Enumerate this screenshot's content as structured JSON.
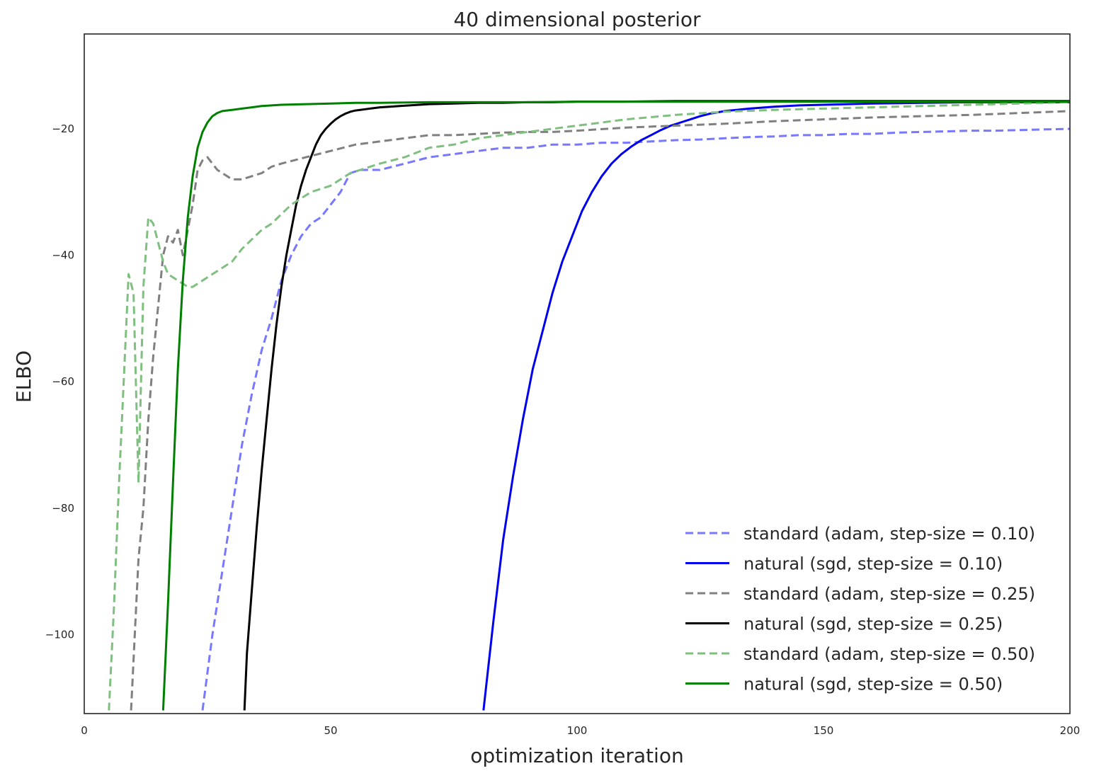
{
  "chart_data": {
    "type": "line",
    "title": "40 dimensional posterior",
    "xlabel": "optimization iteration",
    "ylabel": "ELBO",
    "xlim": [
      0,
      200
    ],
    "ylim": [
      -112.5,
      -5
    ],
    "xticks": [
      0,
      50,
      100,
      150,
      200
    ],
    "yticks": [
      -100,
      -80,
      -60,
      -40,
      -20
    ],
    "grid": false,
    "legend_position": "lower right",
    "series": [
      {
        "name": "standard (adam, step-size = 0.10)",
        "color": "#7777ff",
        "style": "dashed",
        "x": [
          24,
          26,
          28,
          30,
          32,
          34,
          36,
          38,
          40,
          42,
          44,
          46,
          48,
          50,
          52,
          54,
          56,
          58,
          60,
          65,
          70,
          75,
          80,
          85,
          90,
          95,
          100,
          105,
          110,
          115,
          120,
          125,
          130,
          135,
          140,
          145,
          150,
          155,
          160,
          165,
          170,
          175,
          180,
          185,
          190,
          195,
          200
        ],
        "y": [
          -112,
          -100,
          -90,
          -80,
          -70,
          -62,
          -55,
          -50,
          -44,
          -40,
          -37,
          -35,
          -34,
          -32,
          -30,
          -27,
          -26.5,
          -26.5,
          -26.5,
          -25.5,
          -24.5,
          -24,
          -23.5,
          -23,
          -23,
          -22.5,
          -22.5,
          -22.2,
          -22.2,
          -22,
          -21.8,
          -21.7,
          -21.5,
          -21.3,
          -21.2,
          -21,
          -21,
          -20.8,
          -20.8,
          -20.6,
          -20.5,
          -20.4,
          -20.3,
          -20.3,
          -20.2,
          -20.1,
          -20
        ]
      },
      {
        "name": "natural (sgd, step-size = 0.10)",
        "color": "#0000ee",
        "style": "solid",
        "x": [
          81,
          83,
          85,
          87,
          89,
          91,
          93,
          95,
          97,
          99,
          101,
          103,
          105,
          107,
          109,
          111,
          113,
          115,
          117,
          119,
          121,
          123,
          125,
          127,
          130,
          135,
          140,
          145,
          150,
          155,
          160,
          170,
          180,
          190,
          200
        ],
        "y": [
          -112,
          -98,
          -85,
          -75,
          -66,
          -58,
          -52,
          -46,
          -41,
          -37,
          -33,
          -30,
          -27.5,
          -25.5,
          -24,
          -22.8,
          -21.8,
          -21,
          -20.2,
          -19.5,
          -19,
          -18.5,
          -18,
          -17.6,
          -17.2,
          -16.8,
          -16.5,
          -16.3,
          -16.2,
          -16.1,
          -16,
          -15.9,
          -15.8,
          -15.8,
          -15.8
        ]
      },
      {
        "name": "standard (adam, step-size = 0.25)",
        "color": "#808080",
        "style": "dashed",
        "x": [
          9.5,
          10,
          11,
          12,
          13,
          14,
          15,
          16,
          17,
          18,
          19,
          20,
          21,
          22,
          23,
          24,
          25,
          26,
          27,
          28,
          29,
          30,
          32,
          34,
          36,
          38,
          40,
          45,
          50,
          55,
          60,
          65,
          70,
          75,
          80,
          85,
          90,
          95,
          100,
          110,
          120,
          130,
          140,
          150,
          160,
          170,
          180,
          190,
          200
        ],
        "y": [
          -112,
          -104,
          -88,
          -80,
          -66,
          -56,
          -48,
          -40,
          -37,
          -38,
          -36,
          -40,
          -36,
          -32,
          -26.5,
          -25,
          -24.5,
          -25.5,
          -26.5,
          -27,
          -27.5,
          -28,
          -28,
          -27.5,
          -27,
          -26,
          -25.5,
          -24.5,
          -23.5,
          -22.5,
          -22,
          -21.5,
          -21,
          -21,
          -20.8,
          -20.6,
          -20.5,
          -20.5,
          -20.3,
          -19.8,
          -19.5,
          -19.2,
          -18.8,
          -18.5,
          -18.2,
          -18,
          -17.8,
          -17.5,
          -17.2
        ]
      },
      {
        "name": "natural (sgd, step-size = 0.25)",
        "color": "#000000",
        "style": "solid",
        "x": [
          32.5,
          33,
          34,
          35,
          36,
          37,
          38,
          39,
          40,
          41,
          42,
          43,
          44,
          45,
          46,
          47,
          48,
          49,
          50,
          51,
          52,
          53,
          54,
          55,
          56,
          57,
          58,
          59,
          60,
          62,
          64,
          66,
          68,
          70,
          75,
          80,
          85,
          90,
          95,
          100,
          110,
          120,
          130,
          140,
          150,
          160,
          170,
          180,
          190,
          200
        ],
        "y": [
          -112,
          -103,
          -93,
          -83,
          -74,
          -66,
          -58,
          -51,
          -45,
          -40,
          -36,
          -32,
          -29,
          -26.5,
          -24.5,
          -22.5,
          -21,
          -20,
          -19.2,
          -18.5,
          -18,
          -17.6,
          -17.3,
          -17.1,
          -17,
          -16.9,
          -16.8,
          -16.7,
          -16.6,
          -16.5,
          -16.4,
          -16.3,
          -16.2,
          -16.1,
          -16,
          -15.9,
          -15.9,
          -15.8,
          -15.8,
          -15.7,
          -15.7,
          -15.6,
          -15.6,
          -15.6,
          -15.6,
          -15.6,
          -15.6,
          -15.6,
          -15.6,
          -15.6
        ]
      },
      {
        "name": "standard (adam, step-size = 0.50)",
        "color": "#7fbf7f",
        "style": "dashed",
        "x": [
          5,
          6,
          7,
          8,
          9,
          10,
          11,
          12,
          13,
          14,
          15,
          16,
          17,
          18,
          19,
          20,
          21,
          22,
          23,
          24,
          26,
          28,
          30,
          32,
          34,
          36,
          38,
          40,
          42,
          44,
          46,
          48,
          50,
          52,
          54,
          56,
          58,
          60,
          65,
          70,
          75,
          80,
          90,
          100,
          110,
          120,
          130,
          140,
          150,
          160,
          170,
          180,
          190,
          200
        ],
        "y": [
          -112,
          -96,
          -77,
          -60,
          -43,
          -46,
          -76,
          -45,
          -34,
          -35,
          -38,
          -41,
          -43,
          -43.5,
          -44,
          -44.5,
          -45,
          -45,
          -44.5,
          -44,
          -43,
          -42,
          -41,
          -39,
          -37.5,
          -36,
          -35,
          -33.5,
          -32,
          -31,
          -30,
          -29.5,
          -29,
          -28,
          -27,
          -26.5,
          -26,
          -25.5,
          -24.5,
          -23,
          -22.5,
          -21.5,
          -20.5,
          -19.5,
          -18.5,
          -17.8,
          -17.3,
          -17,
          -16.8,
          -16.6,
          -16.4,
          -16.2,
          -16,
          -15.8
        ]
      },
      {
        "name": "natural (sgd, step-size = 0.50)",
        "color": "#008000",
        "style": "solid",
        "x": [
          16,
          17,
          18,
          19,
          20,
          21,
          22,
          23,
          24,
          25,
          26,
          27,
          28,
          30,
          32,
          34,
          36,
          38,
          40,
          45,
          50,
          55,
          60,
          70,
          80,
          90,
          100,
          110,
          120,
          130,
          140,
          150,
          160,
          170,
          180,
          190,
          200
        ],
        "y": [
          -112,
          -95,
          -76,
          -58,
          -44,
          -34,
          -27.5,
          -23,
          -20.5,
          -19,
          -18,
          -17.5,
          -17.2,
          -17,
          -16.8,
          -16.6,
          -16.4,
          -16.3,
          -16.2,
          -16.1,
          -16,
          -15.9,
          -15.9,
          -15.8,
          -15.8,
          -15.8,
          -15.7,
          -15.7,
          -15.7,
          -15.7,
          -15.7,
          -15.7,
          -15.7,
          -15.7,
          -15.7,
          -15.7,
          -15.7
        ]
      }
    ]
  }
}
